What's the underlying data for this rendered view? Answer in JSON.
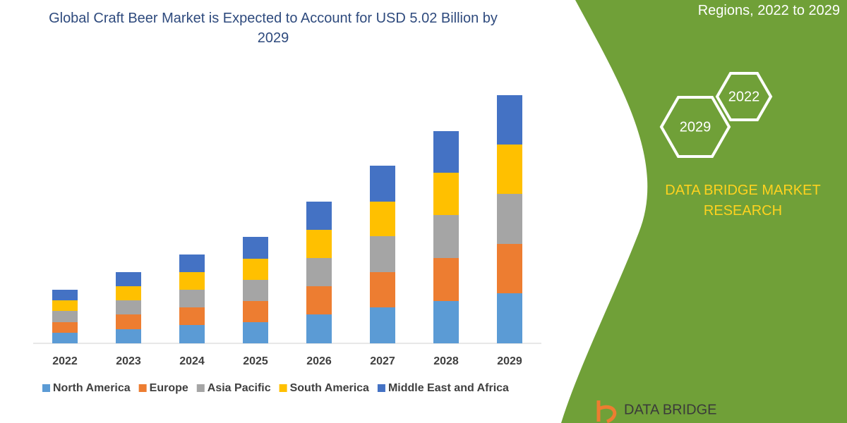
{
  "chart_data": {
    "type": "stacked-bar",
    "title": "Global Craft Beer Market is Expected to Account for USD 5.02 Billion by 2029",
    "categories": [
      "2022",
      "2023",
      "2024",
      "2025",
      "2026",
      "2027",
      "2028",
      "2029"
    ],
    "series": [
      {
        "name": "North America",
        "color": "#5b9bd5",
        "values": [
          15,
          20,
          26,
          30,
          41,
          51,
          60,
          71
        ]
      },
      {
        "name": "Europe",
        "color": "#ed7d31",
        "values": [
          15,
          21,
          25,
          30,
          40,
          50,
          61,
          70
        ]
      },
      {
        "name": "Asia Pacific",
        "color": "#a5a5a5",
        "values": [
          16,
          20,
          25,
          30,
          40,
          51,
          61,
          71
        ]
      },
      {
        "name": "South America",
        "color": "#ffc000",
        "values": [
          15,
          20,
          25,
          30,
          40,
          49,
          60,
          70
        ]
      },
      {
        "name": "Middle East and Africa",
        "color": "#4472c4",
        "values": [
          15,
          20,
          25,
          31,
          40,
          51,
          59,
          70
        ]
      }
    ],
    "ylim": [
      0,
      352
    ],
    "legend": "bottom"
  },
  "side_panel": {
    "subtitle": "Regions, 2022 to 2029",
    "hexagons": [
      "2022",
      "2029"
    ],
    "brand": "DATA BRIDGE MARKET RESEARCH",
    "logo": "DATA BRIDGE"
  }
}
